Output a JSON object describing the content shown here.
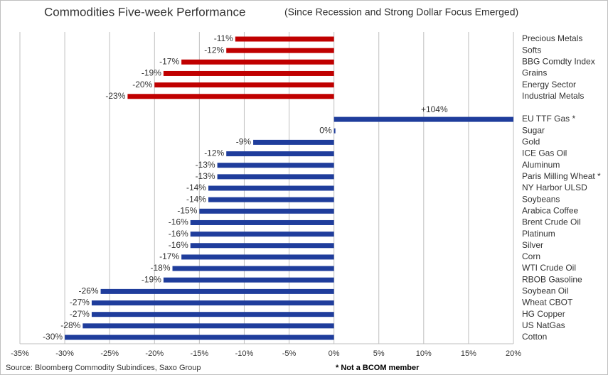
{
  "chart_data": {
    "type": "barh",
    "title": "Commodities Five-week Performance",
    "subtitle": "(Since Recession and Strong Dollar Focus Emerged)",
    "categories": [
      "Precious Metals",
      "Softs",
      "BBG Comdty Index",
      "Grains",
      "Energy Sector",
      "Industrial Metals",
      null,
      "EU TTF Gas *",
      "Sugar",
      "Gold",
      "ICE Gas Oil",
      "Aluminum",
      "Paris Milling Wheat *",
      "NY Harbor ULSD",
      "Soybeans",
      "Arabica Coffee",
      "Brent Crude Oil",
      "Platinum",
      "Silver",
      "Corn",
      "WTI Crude Oil",
      "RBOB Gasoline",
      "Soybean Oil",
      "Wheat CBOT",
      "HG Copper",
      "US NatGas",
      "Cotton"
    ],
    "values": [
      -11,
      -12,
      -17,
      -19,
      -20,
      -23,
      null,
      104,
      0,
      -9,
      -12,
      -13,
      -13,
      -14,
      -14,
      -15,
      -16,
      -16,
      -16,
      -17,
      -18,
      -19,
      -26,
      -27,
      -27,
      -28,
      -30
    ],
    "value_labels": [
      "-11%",
      "-12%",
      "-17%",
      "-19%",
      "-20%",
      "-23%",
      null,
      "+104%",
      "0%",
      "-9%",
      "-12%",
      "-13%",
      "-13%",
      "-14%",
      "-14%",
      "-15%",
      "-16%",
      "-16%",
      "-16%",
      "-17%",
      "-18%",
      "-19%",
      "-26%",
      "-27%",
      "-27%",
      "-28%",
      "-30%"
    ],
    "bar_colors": [
      "#c00000",
      "#c00000",
      "#c00000",
      "#c00000",
      "#c00000",
      "#c00000",
      null,
      "#1f3d9c",
      "#1f3d9c",
      "#1f3d9c",
      "#1f3d9c",
      "#1f3d9c",
      "#1f3d9c",
      "#1f3d9c",
      "#1f3d9c",
      "#1f3d9c",
      "#1f3d9c",
      "#1f3d9c",
      "#1f3d9c",
      "#1f3d9c",
      "#1f3d9c",
      "#1f3d9c",
      "#1f3d9c",
      "#1f3d9c",
      "#1f3d9c",
      "#1f3d9c",
      "#1f3d9c"
    ],
    "xlim": [
      -35,
      20
    ],
    "xticks": [
      {
        "value": -35,
        "label": "-35%"
      },
      {
        "value": -30,
        "label": "-30%"
      },
      {
        "value": -25,
        "label": "-25%"
      },
      {
        "value": -20,
        "label": "-20%"
      },
      {
        "value": -15,
        "label": "-15%"
      },
      {
        "value": -10,
        "label": "-10%"
      },
      {
        "value": -5,
        "label": "-5%"
      },
      {
        "value": 0,
        "label": "0%"
      },
      {
        "value": 5,
        "label": "5%"
      },
      {
        "value": 10,
        "label": "10%"
      },
      {
        "value": 15,
        "label": "15%"
      },
      {
        "value": 20,
        "label": "20%"
      }
    ],
    "grid": true,
    "source": "Source: Bloomberg Commodity Subindices, Saxo Group",
    "footnote": "* Not a BCOM member"
  }
}
